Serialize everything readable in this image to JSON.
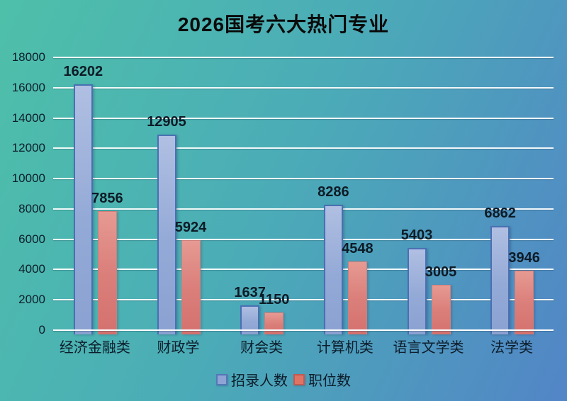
{
  "chart_data": {
    "type": "bar",
    "title": "2026国考六大热门专业",
    "categories": [
      "经济金融类",
      "财政学",
      "财会类",
      "计算机类",
      "语言文学类",
      "法学类"
    ],
    "series": [
      {
        "name": "招录人数",
        "values": [
          16202,
          12905,
          1637,
          8286,
          5403,
          6862
        ],
        "color": "#93a9d6",
        "border_color": "#4a70b3",
        "legend_color": "#8fa3d4",
        "legend_border": "#5577b8"
      },
      {
        "name": "职位数",
        "values": [
          7856,
          5924,
          1150,
          4548,
          3005,
          3946
        ],
        "color": "#db7f7b",
        "border_color": "#d07e7a",
        "legend_color": "#df7465",
        "legend_border": "#c25a50"
      }
    ],
    "xlabel": "",
    "ylabel": "",
    "ylim": [
      0,
      18000
    ],
    "ytick_step": 2000,
    "grid": true,
    "legend_position": "bottom"
  },
  "colors": {
    "background_start": "#4ec0a9",
    "background_mid": "#4bacb7",
    "background_end": "#5285c6",
    "gridline": "#ffffff",
    "text": "#0d1d2b",
    "title_text": "#0a0a0a"
  }
}
